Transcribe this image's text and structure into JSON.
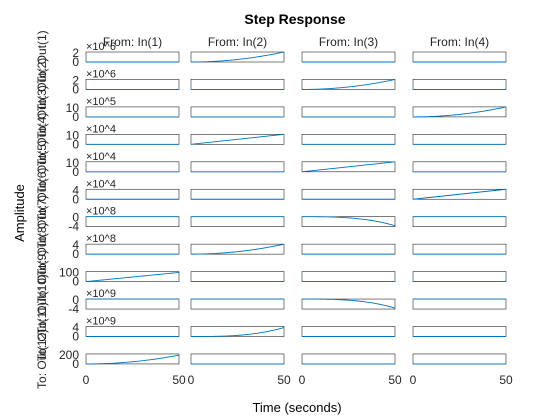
{
  "chart_data": {
    "type": "line",
    "title": "Step Response",
    "xlabel": "Time (seconds)",
    "ylabel": "Amplitude",
    "xlim": [
      0,
      50
    ],
    "x_ticks": [
      "0",
      "50"
    ],
    "columns": [
      "From: In(1)",
      "From: In(2)",
      "From: In(3)",
      "From: In(4)"
    ],
    "rows": [
      {
        "label": "To: Out(1)",
        "exponent": "×10^6",
        "ylim": [
          0,
          2.5
        ],
        "yticks": [
          "2",
          "0"
        ]
      },
      {
        "label": "To: Out(2)",
        "exponent": "×10^6",
        "ylim": [
          0,
          2.5
        ],
        "yticks": [
          "2",
          "0"
        ]
      },
      {
        "label": "To: Out(3)",
        "exponent": "×10^5",
        "ylim": [
          0,
          12
        ],
        "yticks": [
          "10",
          "0"
        ]
      },
      {
        "label": "To: Out(4)",
        "exponent": "×10^4",
        "ylim": [
          0,
          12
        ],
        "yticks": [
          "10",
          "0"
        ]
      },
      {
        "label": "To: Out(5)",
        "exponent": "×10^4",
        "ylim": [
          0,
          12
        ],
        "yticks": [
          "10",
          "0"
        ]
      },
      {
        "label": "To: Out(6)",
        "exponent": "×10^4",
        "ylim": [
          0,
          5
        ],
        "yticks": [
          "4",
          "0"
        ]
      },
      {
        "label": "To: Out(7)",
        "exponent": "×10^8",
        "ylim": [
          -5,
          0
        ],
        "yticks": [
          "0",
          "-4"
        ]
      },
      {
        "label": "To: Out(8)",
        "exponent": "×10^8",
        "ylim": [
          0,
          5
        ],
        "yticks": [
          "4",
          "0"
        ]
      },
      {
        "label": "To: Out(9)",
        "exponent": "",
        "ylim": [
          0,
          120
        ],
        "yticks": [
          "100",
          "0"
        ]
      },
      {
        "label": "To: Out(10)",
        "exponent": "×10^9",
        "ylim": [
          -5,
          0
        ],
        "yticks": [
          "0",
          "-4"
        ]
      },
      {
        "label": "To: Out(11)",
        "exponent": "×10^9",
        "ylim": [
          0,
          5
        ],
        "yticks": [
          "4",
          "0"
        ]
      },
      {
        "label": "To: Out(12)",
        "exponent": "",
        "ylim": [
          0,
          250
        ],
        "yticks": [
          "200",
          "0"
        ]
      }
    ],
    "series": [
      {
        "row": 1,
        "col": 2,
        "shape": "quadratic",
        "end": 2.5
      },
      {
        "row": 2,
        "col": 3,
        "shape": "quadratic",
        "end": 2.5
      },
      {
        "row": 3,
        "col": 4,
        "shape": "quadratic",
        "end": 12
      },
      {
        "row": 4,
        "col": 2,
        "shape": "linear",
        "end": 12
      },
      {
        "row": 5,
        "col": 3,
        "shape": "linear",
        "end": 12
      },
      {
        "row": 6,
        "col": 4,
        "shape": "linear",
        "end": 5
      },
      {
        "row": 7,
        "col": 3,
        "shape": "cubic",
        "end": -4.5
      },
      {
        "row": 8,
        "col": 2,
        "shape": "quadratic",
        "end": 5
      },
      {
        "row": 9,
        "col": 1,
        "shape": "linear",
        "end": 110
      },
      {
        "row": 10,
        "col": 3,
        "shape": "cubic",
        "end": -4.5
      },
      {
        "row": 11,
        "col": 2,
        "shape": "cubic",
        "end": 4.5
      },
      {
        "row": 12,
        "col": 1,
        "shape": "quadratic",
        "end": 220
      }
    ]
  }
}
